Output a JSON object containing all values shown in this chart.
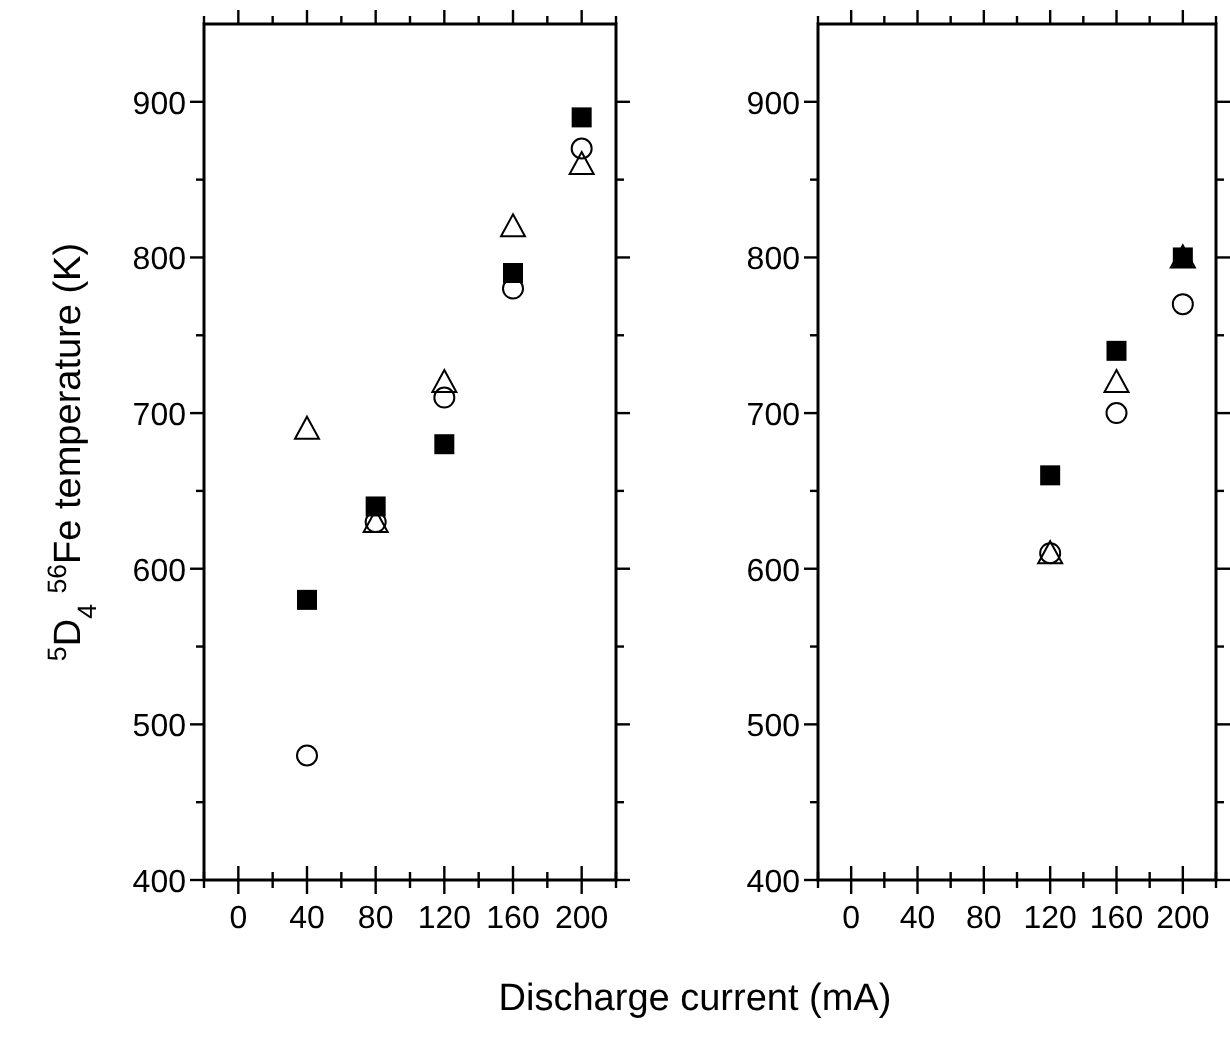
{
  "chart_data": [
    {
      "type": "scatter",
      "ylabel": "$^{5}$D$_{4}$ $^{56}$Fe temperature (K)",
      "xlabel": "Discharge current (mA)",
      "xlim": [
        -20,
        220
      ],
      "ylim": [
        400,
        950
      ],
      "xticks": [
        {
          "value": -20,
          "label": null
        },
        0,
        {
          "value": 20,
          "label": null
        },
        40,
        {
          "value": 60,
          "label": null
        },
        80,
        {
          "value": 100,
          "label": null
        },
        120,
        {
          "value": 140,
          "label": null
        },
        160,
        {
          "value": 180,
          "label": null
        },
        200,
        {
          "value": 220,
          "label": null
        }
      ],
      "yticks": [
        400,
        {
          "value": 450,
          "label": null
        },
        500,
        {
          "value": 550,
          "label": null
        },
        600,
        {
          "value": 650,
          "label": null
        },
        700,
        {
          "value": 750,
          "label": null
        },
        800,
        {
          "value": 850,
          "label": null
        },
        900
      ],
      "grid": false,
      "series": [
        {
          "color": "#000000",
          "marker": "square",
          "x": [
            40,
            80,
            120,
            160,
            200
          ],
          "values": [
            580,
            640,
            680,
            790,
            890
          ]
        },
        {
          "color": "#000000",
          "marker": "triangle",
          "x": [
            40,
            80,
            120,
            160,
            200
          ],
          "values": [
            690,
            630,
            720,
            820,
            860
          ]
        },
        {
          "color": "#000000",
          "marker": "circle",
          "x": [
            40,
            80,
            120,
            160,
            200
          ],
          "values": [
            480,
            630,
            710,
            780,
            870
          ]
        }
      ]
    },
    {
      "type": "scatter",
      "xlim": [
        -20,
        220
      ],
      "ylim": [
        400,
        950
      ],
      "xticks": [
        {
          "value": -20,
          "label": null
        },
        0,
        {
          "value": 20,
          "label": null
        },
        40,
        {
          "value": 60,
          "label": null
        },
        80,
        {
          "value": 100,
          "label": null
        },
        120,
        {
          "value": 140,
          "label": null
        },
        160,
        {
          "value": 180,
          "label": null
        },
        200,
        {
          "value": 220,
          "label": null
        }
      ],
      "yticks": [
        400,
        {
          "value": 450,
          "label": null
        },
        500,
        {
          "value": 550,
          "label": null
        },
        600,
        {
          "value": 650,
          "label": null
        },
        700,
        {
          "value": 750,
          "label": null
        },
        800,
        {
          "value": 850,
          "label": null
        },
        900
      ],
      "grid": false,
      "series": [
        {
          "color": "#000000",
          "marker": "square",
          "x": [
            120,
            160,
            200
          ],
          "values": [
            660,
            740,
            800
          ]
        },
        {
          "color": "#000000",
          "marker": "circle",
          "x": [
            120,
            160,
            200
          ],
          "values": [
            610,
            700,
            770
          ]
        },
        {
          "color": "#000000",
          "marker": "triangle",
          "x": [
            120,
            160,
            200
          ],
          "values": [
            610,
            720,
            800
          ]
        }
      ]
    }
  ]
}
